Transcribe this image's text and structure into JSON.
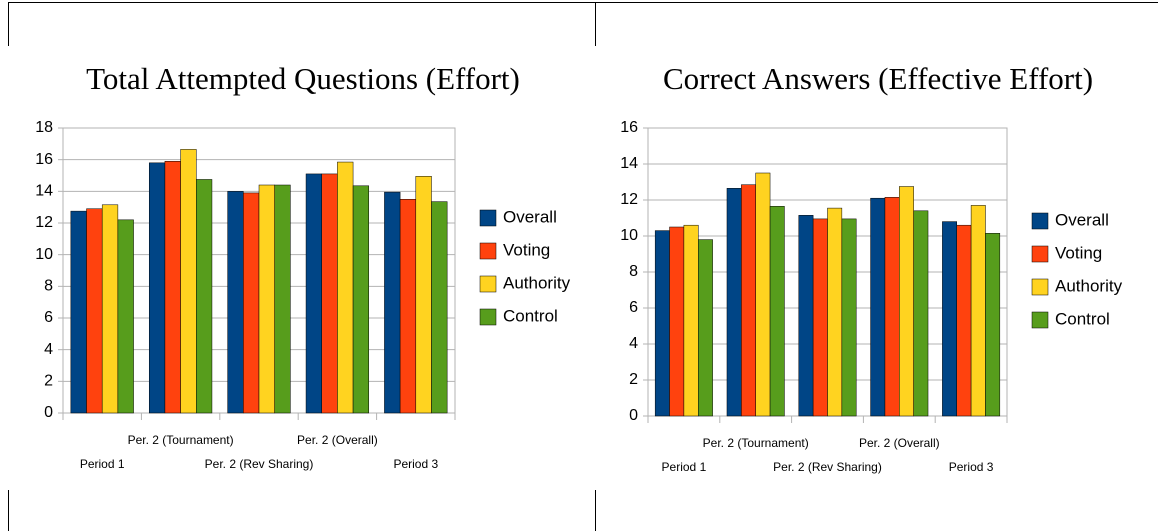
{
  "chart_data": [
    {
      "type": "bar",
      "title": "Total Attempted Questions (Effort)",
      "categories": [
        "Period 1",
        "Per. 2 (Tournament)",
        "Per. 2 (Rev Sharing)",
        "Per. 2 (Overall)",
        "Period 3"
      ],
      "series": [
        {
          "name": "Overall",
          "color": "#004586",
          "values": [
            12.75,
            15.8,
            14.0,
            15.1,
            13.95
          ]
        },
        {
          "name": "Voting",
          "color": "#ff420e",
          "values": [
            12.9,
            15.9,
            13.9,
            15.1,
            13.5
          ]
        },
        {
          "name": "Authority",
          "color": "#ffd320",
          "values": [
            13.15,
            16.65,
            14.4,
            15.85,
            14.95
          ]
        },
        {
          "name": "Control",
          "color": "#579d1c",
          "values": [
            12.2,
            14.75,
            14.4,
            14.35,
            13.35
          ]
        }
      ],
      "ylim": [
        0,
        18
      ],
      "yticks": [
        0,
        2,
        4,
        6,
        8,
        10,
        12,
        14,
        16,
        18
      ],
      "grid": true,
      "legend": "right"
    },
    {
      "type": "bar",
      "title": "Correct Answers (Effective Effort)",
      "categories": [
        "Period 1",
        "Per. 2 (Tournament)",
        "Per. 2 (Rev Sharing)",
        "Per. 2 (Overall)",
        "Period 3"
      ],
      "series": [
        {
          "name": "Overall",
          "color": "#004586",
          "values": [
            10.3,
            12.65,
            11.15,
            12.1,
            10.8
          ]
        },
        {
          "name": "Voting",
          "color": "#ff420e",
          "values": [
            10.5,
            12.85,
            10.95,
            12.15,
            10.6
          ]
        },
        {
          "name": "Authority",
          "color": "#ffd320",
          "values": [
            10.6,
            13.5,
            11.55,
            12.75,
            11.7
          ]
        },
        {
          "name": "Control",
          "color": "#579d1c",
          "values": [
            9.8,
            11.65,
            10.95,
            11.4,
            10.15
          ]
        }
      ],
      "ylim": [
        0,
        16
      ],
      "yticks": [
        0,
        2,
        4,
        6,
        8,
        10,
        12,
        14,
        16
      ],
      "grid": true,
      "legend": "right"
    }
  ]
}
